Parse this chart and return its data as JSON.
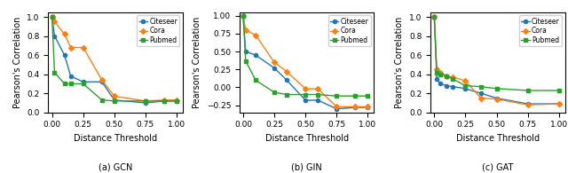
{
  "gcn": {
    "x": [
      0.0,
      0.02,
      0.1,
      0.15,
      0.25,
      0.4,
      0.5,
      0.75,
      0.9,
      1.0
    ],
    "citeseer": [
      1.0,
      0.8,
      0.6,
      0.38,
      0.32,
      0.32,
      0.13,
      0.1,
      0.12,
      0.12
    ],
    "cora": [
      1.0,
      0.95,
      0.82,
      0.68,
      0.68,
      0.34,
      0.17,
      0.12,
      0.13,
      0.13
    ],
    "pubmed": [
      1.0,
      0.42,
      0.3,
      0.3,
      0.3,
      0.13,
      0.12,
      0.12,
      0.12,
      0.12
    ]
  },
  "gin": {
    "x": [
      0.0,
      0.02,
      0.1,
      0.25,
      0.35,
      0.5,
      0.6,
      0.75,
      0.9,
      1.0
    ],
    "citeseer": [
      1.0,
      0.5,
      0.45,
      0.27,
      0.1,
      -0.18,
      -0.18,
      -0.3,
      -0.28,
      -0.28
    ],
    "cora": [
      1.0,
      0.8,
      0.73,
      0.35,
      0.22,
      -0.02,
      -0.02,
      -0.27,
      -0.27,
      -0.27
    ],
    "pubmed": [
      1.0,
      0.37,
      0.1,
      -0.07,
      -0.1,
      -0.1,
      -0.1,
      -0.12,
      -0.12,
      -0.12
    ]
  },
  "gat": {
    "x": [
      0.0,
      0.02,
      0.05,
      0.1,
      0.15,
      0.25,
      0.375,
      0.5,
      0.75,
      1.0
    ],
    "citeseer": [
      1.0,
      0.35,
      0.3,
      0.28,
      0.27,
      0.25,
      0.2,
      0.15,
      0.09,
      0.09
    ],
    "cora": [
      1.0,
      0.45,
      0.42,
      0.38,
      0.37,
      0.33,
      0.15,
      0.14,
      0.08,
      0.09
    ],
    "pubmed": [
      1.0,
      0.42,
      0.4,
      0.38,
      0.35,
      0.28,
      0.27,
      0.25,
      0.23,
      0.23
    ]
  },
  "colors": {
    "citeseer": "#1f77b4",
    "cora": "#ff7f0e",
    "pubmed": "#2ca02c"
  },
  "subtitles": [
    "(a) GCN",
    "(b) GIN",
    "(c) GAT"
  ],
  "xlabel": "Distance Threshold",
  "ylabel": "Pearson's Correlation",
  "ylim_gcn": [
    0.0,
    1.05
  ],
  "ylim_gin": [
    -0.35,
    1.05
  ],
  "ylim_gat": [
    0.0,
    1.05
  ]
}
